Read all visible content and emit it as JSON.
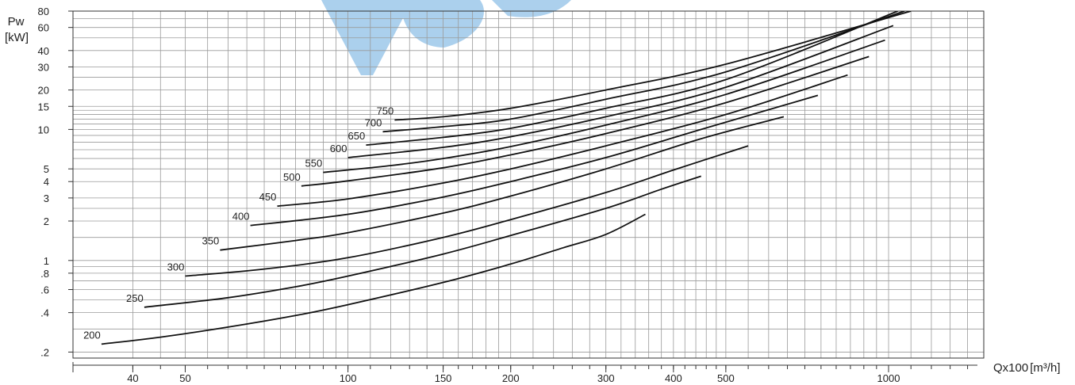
{
  "chart_data": {
    "type": "line",
    "ylabel": "Pw",
    "yunit": "[kW]",
    "xlabel": "Qx100",
    "xunit": "[m³/h]",
    "xscale": "log",
    "yscale": "log",
    "xlim": [
      31,
      1500
    ],
    "ylim": [
      0.18,
      80
    ],
    "grid": true,
    "x_ticks": [
      40,
      50,
      100,
      150,
      200,
      300,
      400,
      500,
      1000
    ],
    "y_ticks": [
      ".2",
      ".4",
      ".6",
      ".8",
      "1",
      "2",
      "3",
      "4",
      "5",
      "10",
      "15",
      "20",
      "30",
      "40",
      "60",
      "80"
    ],
    "series": [
      {
        "name": "200",
        "points": [
          [
            35,
            0.23
          ],
          [
            45,
            0.26
          ],
          [
            60,
            0.31
          ],
          [
            80,
            0.38
          ],
          [
            100,
            0.46
          ],
          [
            150,
            0.68
          ],
          [
            200,
            0.94
          ],
          [
            250,
            1.25
          ],
          [
            300,
            1.58
          ],
          [
            355,
            2.25
          ]
        ]
      },
      {
        "name": "250",
        "points": [
          [
            42,
            0.44
          ],
          [
            60,
            0.52
          ],
          [
            80,
            0.63
          ],
          [
            100,
            0.76
          ],
          [
            150,
            1.12
          ],
          [
            200,
            1.55
          ],
          [
            300,
            2.5
          ],
          [
            380,
            3.5
          ],
          [
            450,
            4.4
          ]
        ]
      },
      {
        "name": "300",
        "points": [
          [
            50,
            0.76
          ],
          [
            70,
            0.86
          ],
          [
            100,
            1.05
          ],
          [
            150,
            1.5
          ],
          [
            200,
            2.05
          ],
          [
            300,
            3.3
          ],
          [
            400,
            4.9
          ],
          [
            550,
            7.5
          ]
        ]
      },
      {
        "name": "350",
        "points": [
          [
            58,
            1.2
          ],
          [
            80,
            1.42
          ],
          [
            100,
            1.63
          ],
          [
            150,
            2.3
          ],
          [
            200,
            3.1
          ],
          [
            300,
            5.0
          ],
          [
            450,
            8.5
          ],
          [
            640,
            12.5
          ]
        ]
      },
      {
        "name": "400",
        "points": [
          [
            66,
            1.85
          ],
          [
            100,
            2.25
          ],
          [
            150,
            3.05
          ],
          [
            200,
            4.0
          ],
          [
            300,
            6.1
          ],
          [
            450,
            10.0
          ],
          [
            740,
            18.2
          ]
        ]
      },
      {
        "name": "450",
        "points": [
          [
            74,
            2.6
          ],
          [
            100,
            2.95
          ],
          [
            150,
            3.9
          ],
          [
            200,
            5.0
          ],
          [
            300,
            7.5
          ],
          [
            500,
            13.0
          ],
          [
            840,
            26.0
          ]
        ]
      },
      {
        "name": "500",
        "points": [
          [
            82,
            3.7
          ],
          [
            100,
            4.05
          ],
          [
            150,
            5.1
          ],
          [
            200,
            6.4
          ],
          [
            300,
            9.3
          ],
          [
            500,
            16.0
          ],
          [
            920,
            36.0
          ]
        ]
      },
      {
        "name": "550",
        "points": [
          [
            90,
            4.7
          ],
          [
            120,
            5.3
          ],
          [
            150,
            6.0
          ],
          [
            200,
            7.4
          ],
          [
            300,
            10.8
          ],
          [
            500,
            18.5
          ],
          [
            985,
            48.0
          ]
        ]
      },
      {
        "name": "600",
        "points": [
          [
            100,
            6.1
          ],
          [
            150,
            7.3
          ],
          [
            200,
            8.8
          ],
          [
            300,
            12.5
          ],
          [
            500,
            21.0
          ],
          [
            1020,
            62.0
          ]
        ]
      },
      {
        "name": "650",
        "points": [
          [
            108,
            7.6
          ],
          [
            150,
            8.7
          ],
          [
            200,
            10.2
          ],
          [
            300,
            14.5
          ],
          [
            500,
            24.0
          ],
          [
            1040,
            80.0
          ]
        ]
      },
      {
        "name": "700",
        "points": [
          [
            116,
            9.6
          ],
          [
            150,
            10.5
          ],
          [
            200,
            12.0
          ],
          [
            300,
            17.0
          ],
          [
            500,
            27.5
          ],
          [
            1070,
            80.0
          ]
        ]
      },
      {
        "name": "750",
        "points": [
          [
            122,
            11.8
          ],
          [
            150,
            12.5
          ],
          [
            200,
            14.5
          ],
          [
            300,
            20.0
          ],
          [
            500,
            31.5
          ],
          [
            1100,
            80.0
          ]
        ]
      }
    ]
  }
}
